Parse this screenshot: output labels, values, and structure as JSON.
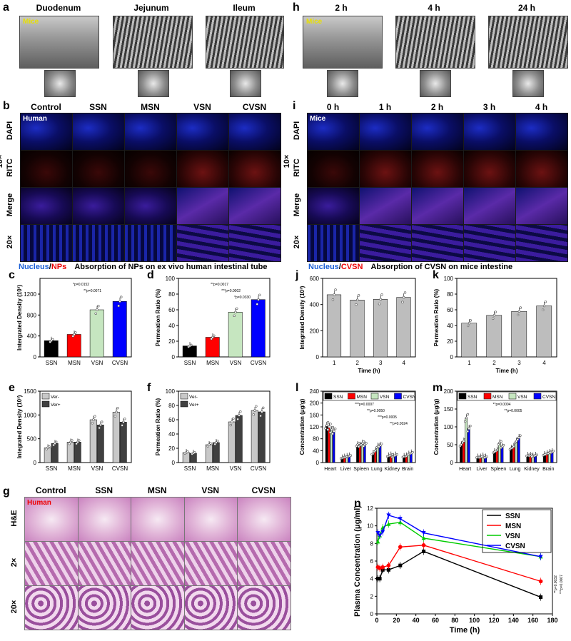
{
  "panels": {
    "a": {
      "label": "a",
      "titles": [
        "Duodenum",
        "Jejunum",
        "Ileum"
      ],
      "tag": "Mice"
    },
    "h": {
      "label": "h",
      "titles": [
        "2 h",
        "4 h",
        "24 h"
      ],
      "tag": "Mice"
    },
    "b": {
      "label": "b",
      "cols": [
        "Control",
        "SSN",
        "MSN",
        "VSN",
        "CVSN"
      ],
      "tag": "Human",
      "rows": [
        "DAPI",
        "RITC",
        "Merge",
        "20×"
      ],
      "mag": "10×"
    },
    "i": {
      "label": "i",
      "cols": [
        "0 h",
        "1 h",
        "2 h",
        "3 h",
        "4 h"
      ],
      "tag": "Mice",
      "rows": [
        "DAPI",
        "RITC",
        "Merge",
        "20×"
      ],
      "mag": "10×"
    },
    "g": {
      "label": "g",
      "cols": [
        "Control",
        "SSN",
        "MSN",
        "VSN",
        "CVSN"
      ],
      "tag": "Human",
      "rows": [
        "H&E",
        "2×",
        "20×"
      ]
    }
  },
  "captions": {
    "left_nucleus": "Nucleus",
    "left_slash": "/",
    "left_nps": "NPs",
    "left_text": "Absorption of NPs on ex vivo human intestinal tube",
    "right_nucleus": "Nucleus",
    "right_slash": "/",
    "right_cvsn": "CVSN",
    "right_text": "Absorption of CVSN on mice intestine"
  },
  "chart_data": [
    {
      "id": "c",
      "type": "bar",
      "label": "c",
      "categories": [
        "SSN",
        "MSN",
        "VSN",
        "CVSN"
      ],
      "values": [
        310,
        430,
        900,
        1060
      ],
      "colors": [
        "#000000",
        "#ff0000",
        "#c6e6c0",
        "#0000ff"
      ],
      "ylabel": "Intergrated Density (10³)",
      "ylim": [
        0,
        1500
      ],
      "yticks": [
        0,
        400,
        800,
        1200
      ],
      "annotations": [
        "*p=0.0152",
        "**p=0.0071"
      ]
    },
    {
      "id": "d",
      "type": "bar",
      "label": "d",
      "categories": [
        "SSN",
        "MSN",
        "VSN",
        "CVSN"
      ],
      "values": [
        14,
        25,
        57,
        73
      ],
      "colors": [
        "#000000",
        "#ff0000",
        "#c6e6c0",
        "#0000ff"
      ],
      "ylabel": "Permeation Ratio (%)",
      "ylim": [
        0,
        100
      ],
      "yticks": [
        0,
        20,
        40,
        60,
        80,
        100
      ],
      "annotations": [
        "**p=0.0017",
        "***p=0.0002",
        "*p=0.0330"
      ]
    },
    {
      "id": "e",
      "type": "bar",
      "label": "e",
      "categories": [
        "SSN",
        "MSN",
        "VSN",
        "CVSN"
      ],
      "series": [
        {
          "name": "Ver-",
          "values": [
            310,
            430,
            900,
            1060
          ],
          "color": "#c8c8c8"
        },
        {
          "name": "Ver+",
          "values": [
            400,
            430,
            790,
            850
          ],
          "color": "#404040"
        }
      ],
      "ylabel": "Integrated Density (10³)",
      "ylim": [
        0,
        1500
      ],
      "yticks": [
        0,
        500,
        1000,
        1500
      ]
    },
    {
      "id": "f",
      "type": "bar",
      "label": "f",
      "categories": [
        "SSN",
        "MSN",
        "VSN",
        "CVSN"
      ],
      "series": [
        {
          "name": "Ver-",
          "values": [
            14,
            25,
            57,
            73
          ],
          "color": "#c8c8c8"
        },
        {
          "name": "Ver+",
          "values": [
            13,
            28,
            66,
            71
          ],
          "color": "#404040"
        }
      ],
      "ylabel": "Permeation Ratio (%)",
      "ylim": [
        0,
        100
      ],
      "yticks": [
        0,
        20,
        40,
        60,
        80,
        100
      ]
    },
    {
      "id": "j",
      "type": "bar",
      "label": "j",
      "categories": [
        "1",
        "2",
        "3",
        "4"
      ],
      "values": [
        475,
        435,
        440,
        455
      ],
      "colors": [
        "#bdbdbd",
        "#bdbdbd",
        "#bdbdbd",
        "#bdbdbd"
      ],
      "ylabel": "Integrated Density (10³)",
      "xlabel": "Time (h)",
      "ylim": [
        0,
        600
      ],
      "yticks": [
        0,
        200,
        400,
        600
      ]
    },
    {
      "id": "k",
      "type": "bar",
      "label": "k",
      "categories": [
        "1",
        "2",
        "3",
        "4"
      ],
      "values": [
        43,
        53,
        58,
        65
      ],
      "colors": [
        "#bdbdbd",
        "#bdbdbd",
        "#bdbdbd",
        "#bdbdbd"
      ],
      "ylabel": "Permeation Ratio (%)",
      "xlabel": "Time (h)",
      "ylim": [
        0,
        100
      ],
      "yticks": [
        0,
        20,
        40,
        60,
        80,
        100
      ]
    },
    {
      "id": "l",
      "type": "bar",
      "label": "l",
      "categories": [
        "Heart",
        "Liver",
        "Spleen",
        "Lung",
        "Kidney",
        "Brain"
      ],
      "series": [
        {
          "name": "SSN",
          "values": [
            125,
            15,
            60,
            30,
            22,
            20
          ],
          "color": "#000000"
        },
        {
          "name": "MSN",
          "values": [
            120,
            18,
            58,
            40,
            25,
            22
          ],
          "color": "#ff0000"
        },
        {
          "name": "VSN",
          "values": [
            110,
            20,
            65,
            55,
            20,
            28
          ],
          "color": "#c6e6c0"
        },
        {
          "name": "CVSN",
          "values": [
            105,
            22,
            60,
            58,
            25,
            32
          ],
          "color": "#0000ff"
        }
      ],
      "ylabel": "Concentration (μg/g)",
      "ylim": [
        0,
        240
      ],
      "yticks": [
        0,
        40,
        80,
        120,
        160,
        200,
        240
      ],
      "annotations": [
        "***p=0.0007",
        "**p=0.0050",
        "***p=0.0005",
        "**p=0.0024"
      ]
    },
    {
      "id": "m",
      "type": "bar",
      "label": "m",
      "categories": [
        "Heart",
        "Liver",
        "Spleen",
        "Lung",
        "Kidney",
        "Brain"
      ],
      "series": [
        {
          "name": "SSN",
          "values": [
            50,
            15,
            30,
            40,
            20,
            22
          ],
          "color": "#000000"
        },
        {
          "name": "MSN",
          "values": [
            60,
            15,
            35,
            45,
            20,
            25
          ],
          "color": "#ff0000"
        },
        {
          "name": "VSN",
          "values": [
            125,
            18,
            55,
            60,
            18,
            28
          ],
          "color": "#c6e6c0"
        },
        {
          "name": "CVSN",
          "values": [
            95,
            15,
            45,
            70,
            20,
            30
          ],
          "color": "#0000ff"
        }
      ],
      "ylabel": "Concentration (μg/g)",
      "ylim": [
        0,
        200
      ],
      "yticks": [
        0,
        50,
        100,
        150,
        200
      ],
      "annotations": [
        "**p=0.0004",
        "**p=0.0005"
      ]
    },
    {
      "id": "n",
      "type": "line",
      "label": "n",
      "xlabel": "Time (h)",
      "ylabel": "Plasma Concentration (μg/ml)",
      "xlim": [
        0,
        180
      ],
      "xticks": [
        0,
        20,
        40,
        60,
        80,
        100,
        120,
        140,
        160,
        180
      ],
      "ylim": [
        0,
        12
      ],
      "yticks": [
        0,
        2,
        4,
        6,
        8,
        10,
        12
      ],
      "x": [
        1,
        3,
        6,
        12,
        24,
        48,
        168
      ],
      "series": [
        {
          "name": "SSN",
          "color": "#000000",
          "marker": "square",
          "values": [
            4.0,
            4.0,
            5.0,
            5.0,
            5.5,
            7.1,
            1.9
          ]
        },
        {
          "name": "MSN",
          "color": "#ff0000",
          "marker": "circle",
          "values": [
            5.3,
            5.2,
            5.3,
            5.5,
            7.6,
            7.8,
            3.7
          ]
        },
        {
          "name": "VSN",
          "color": "#00cc00",
          "marker": "triangle-up",
          "values": [
            8.2,
            8.9,
            9.8,
            10.2,
            10.4,
            8.6,
            6.5
          ]
        },
        {
          "name": "CVSN",
          "color": "#0000ff",
          "marker": "triangle-down",
          "values": [
            9.2,
            8.9,
            9.3,
            11.2,
            10.8,
            9.2,
            6.5
          ]
        }
      ],
      "annotations": [
        "**p=0.0032",
        "***p=0.0007"
      ]
    }
  ]
}
